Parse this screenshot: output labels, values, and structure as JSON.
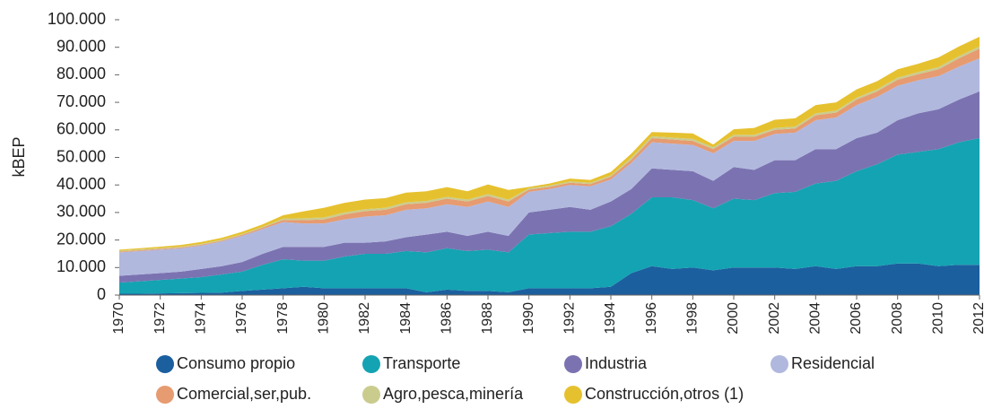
{
  "chart_data": {
    "type": "stacked_area",
    "y_label": "kBEP",
    "x": [
      1970,
      1971,
      1972,
      1973,
      1974,
      1975,
      1976,
      1977,
      1978,
      1979,
      1980,
      1981,
      1982,
      1983,
      1984,
      1985,
      1986,
      1987,
      1988,
      1989,
      1990,
      1991,
      1992,
      1993,
      1994,
      1995,
      1996,
      1997,
      1998,
      1999,
      2000,
      2001,
      2002,
      2003,
      2004,
      2005,
      2006,
      2007,
      2008,
      2009,
      2010,
      2011,
      2012
    ],
    "xlim": [
      1970,
      2012
    ],
    "xticks": [
      1970,
      1972,
      1974,
      1976,
      1978,
      1980,
      1982,
      1984,
      1986,
      1988,
      1990,
      1992,
      1994,
      1996,
      1998,
      2000,
      2002,
      2004,
      2006,
      2008,
      2010,
      2012
    ],
    "ylim": [
      0,
      100000
    ],
    "yticks": [
      0,
      {
        "value": 10000,
        "label": "10.000"
      },
      {
        "value": 20000,
        "label": "20.000"
      },
      {
        "value": 30000,
        "label": "30.000"
      },
      {
        "value": 40000,
        "label": "40.000"
      },
      {
        "value": 50000,
        "label": "50.000"
      },
      {
        "value": 60000,
        "label": "60.000"
      },
      {
        "value": 70000,
        "label": "70.000"
      },
      {
        "value": 80000,
        "label": "80.000"
      },
      {
        "value": 90000,
        "label": "90.000"
      },
      {
        "value": 100000,
        "label": "100.000"
      }
    ],
    "series": [
      {
        "name": "Consumo propio",
        "color": "#1b5f9f",
        "values": [
          500,
          500,
          600,
          700,
          800,
          900,
          1500,
          2000,
          2500,
          3000,
          2500,
          2500,
          2500,
          2500,
          2500,
          1000,
          2000,
          1500,
          1500,
          1000,
          2500,
          2500,
          2500,
          2500,
          3000,
          8000,
          10500,
          9500,
          10000,
          9000,
          10000,
          10000,
          10000,
          9500,
          10500,
          9500,
          10500,
          10500,
          11500,
          11500,
          10500,
          11000,
          11000
        ]
      },
      {
        "name": "Transporte",
        "color": "#14a3b2",
        "values": [
          4000,
          4500,
          4900,
          5300,
          5700,
          6600,
          7000,
          9000,
          10500,
          9500,
          10000,
          11500,
          12500,
          12500,
          13500,
          14500,
          15000,
          14500,
          15000,
          14500,
          19500,
          20000,
          20500,
          20500,
          22000,
          21500,
          25000,
          26000,
          24500,
          22500,
          25000,
          24500,
          27000,
          28000,
          30000,
          32000,
          34500,
          37000,
          39500,
          40500,
          42500,
          44500,
          46000
        ]
      },
      {
        "name": "Industria",
        "color": "#7b73b1",
        "values": [
          2500,
          2500,
          2500,
          2500,
          3000,
          3000,
          3500,
          4000,
          4500,
          5000,
          5000,
          5000,
          4000,
          4500,
          5000,
          6500,
          6000,
          5500,
          6500,
          6000,
          8000,
          8500,
          9000,
          8000,
          9000,
          9000,
          10500,
          10000,
          10500,
          10000,
          11500,
          11000,
          12000,
          11500,
          12500,
          11500,
          12000,
          11500,
          12500,
          14000,
          14500,
          15500,
          17000
        ]
      },
      {
        "name": "Residencial",
        "color": "#b1b8de",
        "values": [
          8500,
          8500,
          8500,
          8500,
          8500,
          9000,
          9500,
          9000,
          9000,
          8500,
          8500,
          8500,
          9500,
          9500,
          10000,
          9500,
          10000,
          10500,
          11000,
          10500,
          7500,
          7500,
          8000,
          8500,
          8000,
          9500,
          9500,
          9500,
          9500,
          10000,
          9500,
          10500,
          9500,
          10000,
          10500,
          11500,
          12000,
          13000,
          12500,
          12000,
          12000,
          12000,
          12000
        ]
      },
      {
        "name": "Comercial,ser,pub.",
        "color": "#e69b70",
        "values": [
          300,
          300,
          300,
          300,
          300,
          300,
          400,
          500,
          800,
          1200,
          1500,
          1800,
          2000,
          2000,
          2000,
          2000,
          2000,
          2000,
          2000,
          2000,
          800,
          800,
          800,
          800,
          1000,
          1200,
          1500,
          1500,
          1500,
          1500,
          1500,
          1500,
          1500,
          1500,
          1800,
          1800,
          2000,
          2000,
          2200,
          2200,
          2500,
          3000,
          3500
        ]
      },
      {
        "name": "Agro,pesca,minería",
        "color": "#cacc8e",
        "values": [
          300,
          300,
          300,
          300,
          300,
          300,
          300,
          300,
          500,
          700,
          700,
          700,
          700,
          700,
          700,
          700,
          700,
          700,
          700,
          700,
          500,
          500,
          500,
          500,
          500,
          700,
          700,
          700,
          700,
          700,
          700,
          700,
          700,
          700,
          700,
          700,
          700,
          700,
          800,
          800,
          800,
          800,
          800
        ]
      },
      {
        "name": "Construcción,otros (1)",
        "color": "#e6c12f",
        "values": [
          400,
          400,
          500,
          600,
          700,
          700,
          800,
          900,
          1200,
          2500,
          3500,
          3500,
          3500,
          3500,
          3500,
          3500,
          3500,
          3000,
          3500,
          3500,
          500,
          700,
          1000,
          1000,
          1200,
          1500,
          1500,
          1800,
          2000,
          1000,
          2000,
          2500,
          3000,
          3000,
          3000,
          3000,
          3000,
          3000,
          3000,
          3000,
          3500,
          3500,
          3500
        ]
      }
    ]
  }
}
